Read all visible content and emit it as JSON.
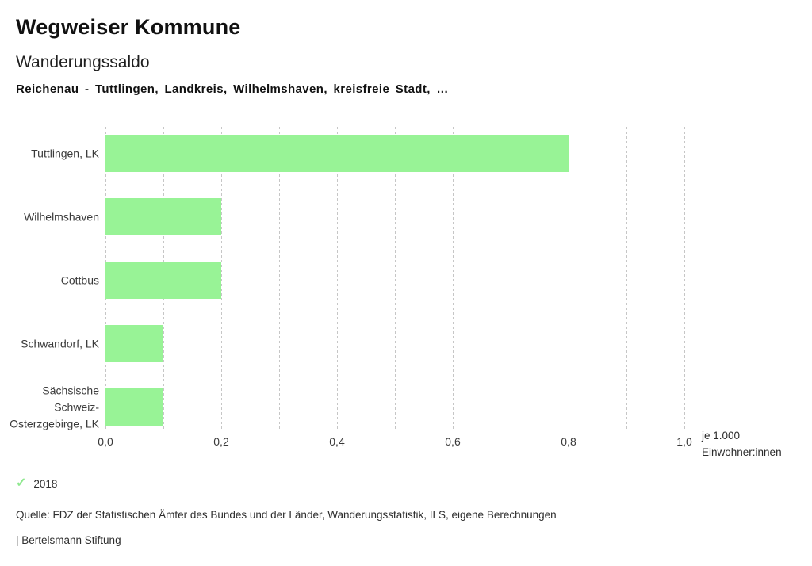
{
  "header": {
    "title": "Wegweiser Kommune",
    "subtitle": "Wanderungssaldo",
    "selection": "Reichenau - Tuttlingen, Landkreis, Wilhelmshaven, kreisfreie Stadt, …"
  },
  "chart_data": {
    "type": "bar",
    "orientation": "horizontal",
    "title": "Wanderungssaldo",
    "categories": [
      "Tuttlingen, LK",
      "Wilhelmshaven",
      "Cottbus",
      "Schwandorf, LK",
      "Sächsische Schweiz-Osterzgebirge, LK"
    ],
    "series": [
      {
        "name": "2018",
        "values": [
          0.8,
          0.2,
          0.2,
          0.1,
          0.1
        ]
      }
    ],
    "xlabel": "je 1.000 Einwohner:innen",
    "ylabel": "",
    "xlim": [
      0.0,
      1.0
    ],
    "x_tick_labels": [
      "0,0",
      "0,2",
      "0,4",
      "0,6",
      "0,8",
      "1,0"
    ],
    "x_tick_values": [
      0.0,
      0.2,
      0.4,
      0.6,
      0.8,
      1.0
    ],
    "gridline_step": 0.1,
    "grid": true,
    "legend_position": "bottom",
    "bar_color": "#98f396"
  },
  "axis_unit": {
    "line1": "je 1.000",
    "line2": "Einwohner:innen"
  },
  "legend": {
    "check_icon": "✓",
    "check_color": "#8de88d",
    "year": "2018"
  },
  "footer": {
    "source": "Quelle: FDZ der Statistischen Ämter des Bundes und der Länder, Wanderungsstatistik, ILS, eigene Berechnungen",
    "brand": "| Bertelsmann Stiftung"
  },
  "colors": {
    "bar": "#98f396",
    "gridline": "#c6c6c6"
  }
}
